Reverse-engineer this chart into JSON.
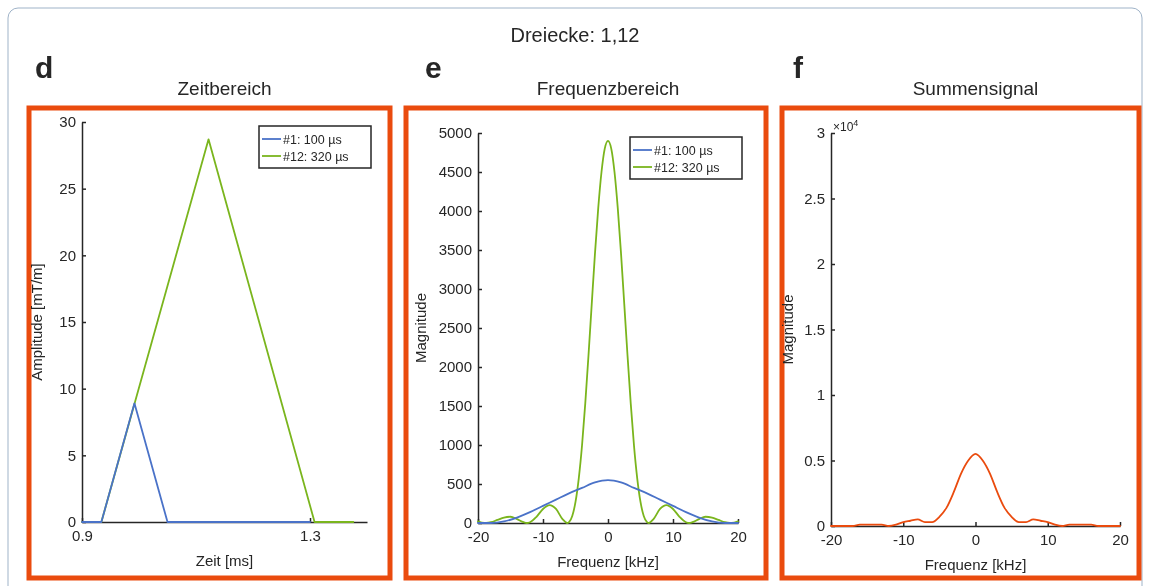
{
  "chart_data": [
    {
      "type": "line",
      "title": "Zeitbereich",
      "xlabel": "Zeit [ms]",
      "ylabel": "Amplitude [mT/m]",
      "annotations": [
        "Dreiecke: 1,12",
        "d"
      ],
      "xlim": [
        0.9,
        1.4
      ],
      "xticks": [
        0.9,
        1.3
      ],
      "ylim": [
        0,
        30
      ],
      "yticks": [
        0,
        5,
        10,
        15,
        20,
        25,
        30
      ],
      "legend": "top right",
      "grid": false,
      "series": [
        {
          "name": "#1: 100 µs",
          "color": "#4a72c8",
          "x": [
            0.9,
            0.934,
            0.992,
            1.05,
            1.3
          ],
          "values": [
            0,
            0,
            8.9,
            0,
            0
          ]
        },
        {
          "name": "#12: 320 µs",
          "color": "#7ab51d",
          "x": [
            0.9,
            0.934,
            1.122,
            1.308,
            1.376
          ],
          "values": [
            0,
            0,
            28.7,
            0,
            0
          ]
        }
      ]
    },
    {
      "type": "line",
      "title": "Frequenzbereich",
      "xlabel": "Frequenz [kHz]",
      "ylabel": "Magnitude",
      "annotations": [
        "e"
      ],
      "xlim": [
        -20,
        20
      ],
      "xticks": [
        -20,
        -10,
        0,
        10,
        20
      ],
      "ylim": [
        0,
        5000
      ],
      "yticks": [
        0,
        500,
        1000,
        1500,
        2000,
        2500,
        3000,
        3500,
        4000,
        4500,
        5000
      ],
      "legend": "top right",
      "grid": false,
      "series": [
        {
          "name": "#1: 100 µs",
          "color": "#4a72c8",
          "x": [
            -20,
            -18,
            -16,
            -14,
            -12,
            -10,
            -8,
            -6,
            -4,
            -2,
            0,
            2,
            4,
            6,
            8,
            10,
            12,
            14,
            16,
            18,
            20
          ],
          "values": [
            0,
            0,
            20,
            70,
            140,
            220,
            300,
            380,
            450,
            520,
            550,
            520,
            450,
            380,
            300,
            220,
            140,
            70,
            20,
            0,
            0
          ]
        },
        {
          "name": "#12: 320 µs",
          "color": "#7ab51d",
          "x": [
            -20,
            -19,
            -18.75,
            -18,
            -17,
            -16,
            -15,
            -14,
            -13,
            -12.5,
            -12,
            -11,
            -10,
            -9,
            -8,
            -7,
            -6.25,
            -6,
            -5.5,
            -5,
            -4.5,
            -4,
            -3.5,
            -3,
            -2.5,
            -2,
            -1.5,
            -1,
            -0.5,
            0,
            0.5,
            1,
            1.5,
            2,
            2.5,
            3,
            3.5,
            4,
            4.5,
            5,
            5.5,
            6,
            6.25,
            7,
            8,
            9,
            10,
            11,
            12,
            12.5,
            13,
            14,
            15,
            16,
            17,
            18,
            18.75,
            19,
            20
          ],
          "values": [
            20,
            0,
            0,
            10,
            40,
            70,
            80,
            50,
            10,
            0,
            10,
            80,
            180,
            230,
            180,
            50,
            0,
            10,
            90,
            270,
            570,
            990,
            1530,
            2150,
            2810,
            3460,
            4040,
            4500,
            4800,
            4900,
            4800,
            4500,
            4040,
            3460,
            2810,
            2150,
            1530,
            990,
            570,
            270,
            90,
            10,
            0,
            50,
            180,
            230,
            180,
            80,
            10,
            0,
            10,
            50,
            80,
            70,
            40,
            10,
            0,
            0,
            20
          ]
        }
      ]
    },
    {
      "type": "line",
      "title": "Summensignal",
      "xlabel": "Frequenz [kHz]",
      "ylabel": "Magnitude",
      "annotations": [
        "f",
        "×10$^{4}$"
      ],
      "xlim": [
        -20,
        20
      ],
      "xticks": [
        -20,
        -10,
        0,
        10,
        20
      ],
      "ylim": [
        0,
        3
      ],
      "yticks": [
        0,
        0.5,
        1,
        1.5,
        2,
        2.5,
        3
      ],
      "grid": false,
      "series": [
        {
          "color": "#ea4b0e",
          "x": [
            -20,
            -19,
            -18,
            -17,
            -16,
            -15,
            -14,
            -13,
            -12,
            -11,
            -10,
            -9,
            -8,
            -7,
            -6,
            -5,
            -4,
            -3,
            -2,
            -1,
            0,
            1,
            2,
            3,
            4,
            5,
            6,
            7,
            8,
            9,
            10,
            11,
            12,
            13,
            14,
            15,
            16,
            17,
            18,
            19,
            20
          ],
          "values": [
            0,
            0,
            0,
            0,
            0.01,
            0.01,
            0.01,
            0.01,
            0,
            0.01,
            0.03,
            0.04,
            0.05,
            0.03,
            0.03,
            0.07,
            0.14,
            0.26,
            0.4,
            0.5,
            0.55,
            0.5,
            0.4,
            0.26,
            0.14,
            0.07,
            0.03,
            0.03,
            0.05,
            0.04,
            0.03,
            0.01,
            0,
            0.01,
            0.01,
            0.01,
            0.01,
            0,
            0,
            0,
            0
          ]
        }
      ]
    }
  ]
}
